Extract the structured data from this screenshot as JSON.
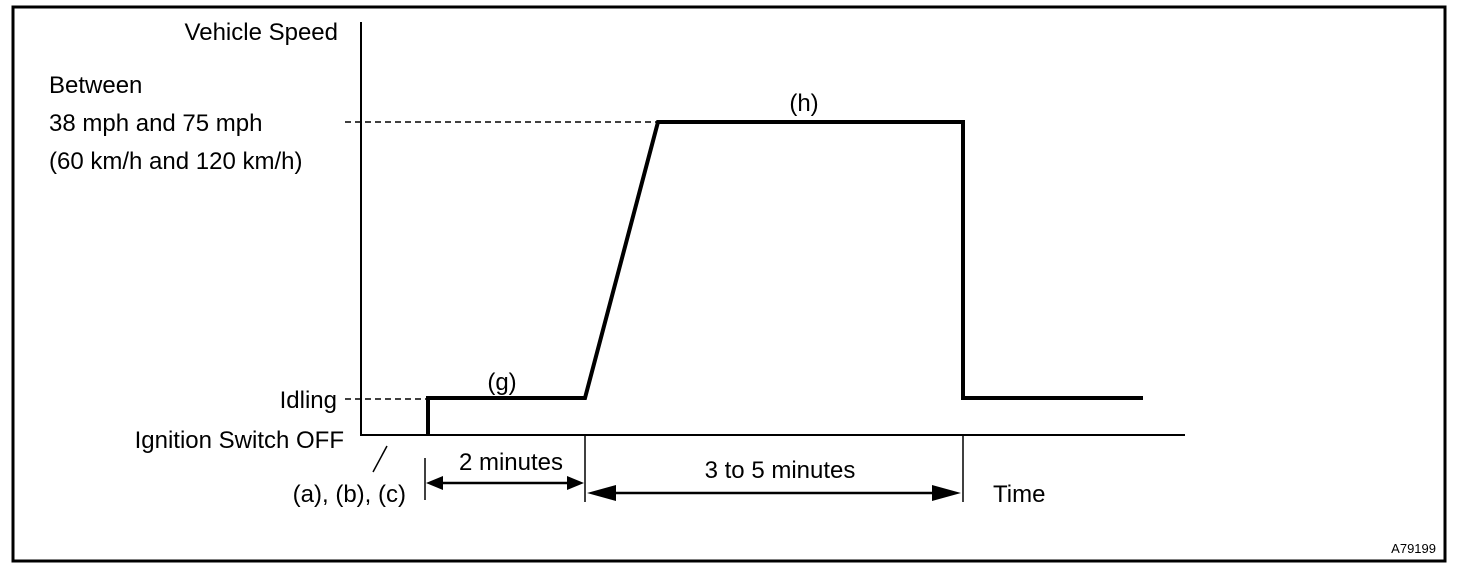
{
  "labels": {
    "y_axis": "Vehicle Speed",
    "high_speed": [
      "Between",
      "38 mph and 75 mph",
      "(60 km/h and 120 km/h)"
    ],
    "idling": "Idling",
    "ignition_off": "Ignition Switch OFF",
    "steps_abc": "(a), (b), (c)",
    "step_g": "(g)",
    "step_h": "(h)",
    "duration_2": "2 minutes",
    "duration_3_5": "3 to 5 minutes",
    "x_axis": "Time",
    "figure_code": "A79199"
  }
}
